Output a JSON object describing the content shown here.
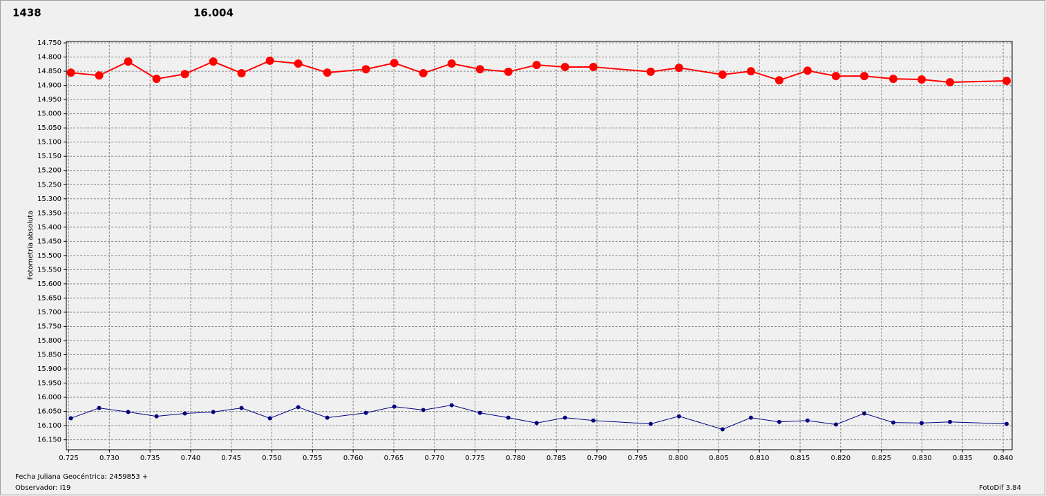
{
  "chart_data": {
    "type": "line",
    "y_label": "Fotometría absoluta",
    "x_label": "Fecha Juliana Geocéntrica: 2459853 +",
    "observer": "Observador: I19",
    "software": "FotoDif 3.84",
    "y_inverted": true,
    "grid": true,
    "xlim": [
      0.7247,
      0.8411
    ],
    "ylim": [
      14.745,
      16.185
    ],
    "xticks": [
      {
        "value": 0.725,
        "label": "0.725"
      },
      {
        "value": 0.73,
        "label": "0.730"
      },
      {
        "value": 0.735,
        "label": "0.735"
      },
      {
        "value": 0.74,
        "label": "0.740"
      },
      {
        "value": 0.745,
        "label": "0.745"
      },
      {
        "value": 0.75,
        "label": "0.750"
      },
      {
        "value": 0.755,
        "label": "0.755"
      },
      {
        "value": 0.76,
        "label": "0.760"
      },
      {
        "value": 0.765,
        "label": "0.765"
      },
      {
        "value": 0.77,
        "label": "0.770"
      },
      {
        "value": 0.775,
        "label": "0.775"
      },
      {
        "value": 0.78,
        "label": "0.780"
      },
      {
        "value": 0.785,
        "label": "0.785"
      },
      {
        "value": 0.79,
        "label": "0.790"
      },
      {
        "value": 0.795,
        "label": "0.795"
      },
      {
        "value": 0.8,
        "label": "0.800"
      },
      {
        "value": 0.805,
        "label": "0.805"
      },
      {
        "value": 0.81,
        "label": "0.810"
      },
      {
        "value": 0.815,
        "label": "0.815"
      },
      {
        "value": 0.82,
        "label": "0.820"
      },
      {
        "value": 0.825,
        "label": "0.825"
      },
      {
        "value": 0.83,
        "label": "0.830"
      },
      {
        "value": 0.835,
        "label": "0.835"
      },
      {
        "value": 0.84,
        "label": "0.840"
      }
    ],
    "yticks": [
      {
        "value": 14.75,
        "label": "14.750"
      },
      {
        "value": 14.8,
        "label": "14.800"
      },
      {
        "value": 14.85,
        "label": "14.850"
      },
      {
        "value": 14.9,
        "label": "14.900"
      },
      {
        "value": 14.95,
        "label": "14.950"
      },
      {
        "value": 15,
        "label": "15.000"
      },
      {
        "value": 15.05,
        "label": "15.050"
      },
      {
        "value": 15.1,
        "label": "15.100"
      },
      {
        "value": 15.15,
        "label": "15.150"
      },
      {
        "value": 15.2,
        "label": "15.200"
      },
      {
        "value": 15.25,
        "label": "15.250"
      },
      {
        "value": 15.3,
        "label": "15.300"
      },
      {
        "value": 15.35,
        "label": "15.350"
      },
      {
        "value": 15.4,
        "label": "15.400"
      },
      {
        "value": 15.45,
        "label": "15.450"
      },
      {
        "value": 15.5,
        "label": "15.500"
      },
      {
        "value": 15.55,
        "label": "15.550"
      },
      {
        "value": 15.6,
        "label": "15.600"
      },
      {
        "value": 15.65,
        "label": "15.650"
      },
      {
        "value": 15.7,
        "label": "15.700"
      },
      {
        "value": 15.75,
        "label": "15.750"
      },
      {
        "value": 15.8,
        "label": "15.800"
      },
      {
        "value": 15.85,
        "label": "15.850"
      },
      {
        "value": 15.9,
        "label": "15.900"
      },
      {
        "value": 15.95,
        "label": "15.950"
      },
      {
        "value": 16,
        "label": "16.000"
      },
      {
        "value": 16.05,
        "label": "16.050"
      },
      {
        "value": 16.1,
        "label": "16.100"
      },
      {
        "value": 16.15,
        "label": "16.150"
      }
    ],
    "x": [
      0.72526,
      0.72874,
      0.73231,
      0.7358,
      0.73929,
      0.74278,
      0.74626,
      0.74975,
      0.75324,
      0.75681,
      0.76157,
      0.76506,
      0.76863,
      0.77212,
      0.77561,
      0.7791,
      0.78258,
      0.78607,
      0.78956,
      0.79662,
      0.8001,
      0.80546,
      0.80895,
      0.81244,
      0.81592,
      0.81941,
      0.8229,
      0.82647,
      0.82996,
      0.83345,
      0.84042
    ],
    "series": [
      {
        "name": "1438",
        "color": "#ff0000",
        "marker_radius": 6,
        "line_width": 2,
        "values": [
          14.855,
          14.865,
          14.816,
          14.877,
          14.86,
          14.816,
          14.857,
          14.813,
          14.823,
          14.855,
          14.843,
          14.821,
          14.857,
          14.823,
          14.843,
          14.852,
          14.828,
          14.835,
          14.835,
          14.852,
          14.838,
          14.862,
          14.85,
          14.882,
          14.848,
          14.867,
          14.867,
          14.877,
          14.879,
          14.889,
          14.884
        ]
      },
      {
        "name": "16.004",
        "color": "#000080",
        "marker_radius": 3,
        "line_width": 1,
        "values": [
          16.074,
          16.038,
          16.052,
          16.067,
          16.057,
          16.052,
          16.038,
          16.074,
          16.035,
          16.072,
          16.055,
          16.033,
          16.045,
          16.028,
          16.055,
          16.072,
          16.091,
          16.072,
          16.082,
          16.094,
          16.067,
          16.113,
          16.072,
          16.087,
          16.082,
          16.096,
          16.057,
          16.089,
          16.091,
          16.087,
          16.094
        ]
      }
    ]
  }
}
